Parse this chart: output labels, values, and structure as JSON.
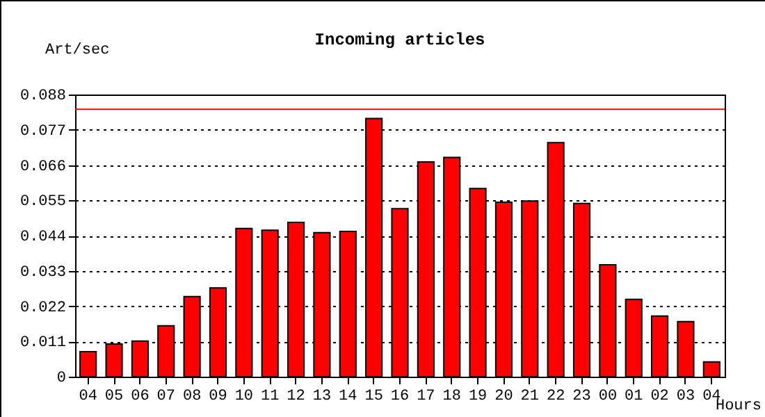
{
  "chart_data": {
    "type": "bar",
    "title": "Incoming articles",
    "xlabel": "Hours",
    "ylabel": "Art/sec",
    "categories": [
      "04",
      "05",
      "06",
      "07",
      "08",
      "09",
      "10",
      "11",
      "12",
      "13",
      "14",
      "15",
      "16",
      "17",
      "18",
      "19",
      "20",
      "21",
      "22",
      "23",
      "00",
      "01",
      "02",
      "03",
      "04"
    ],
    "values": [
      0.0078,
      0.0102,
      0.0111,
      0.0159,
      0.025,
      0.0277,
      0.0462,
      0.0457,
      0.0481,
      0.0449,
      0.0453,
      0.0805,
      0.0524,
      0.067,
      0.0684,
      0.0587,
      0.0544,
      0.0548,
      0.073,
      0.054,
      0.0349,
      0.0241,
      0.0189,
      0.0172,
      0.0046
    ],
    "color": "#ff0000",
    "ylim": [
      0,
      0.088
    ],
    "yticks": [
      {
        "value": 0,
        "label": "0"
      },
      0.011,
      0.022,
      0.033,
      0.044,
      0.055,
      0.066,
      0.077,
      0.088
    ],
    "grid": "y",
    "ref_lines": [
      {
        "axis": "y",
        "value": 0.0834,
        "color": "#ff0000"
      }
    ]
  }
}
